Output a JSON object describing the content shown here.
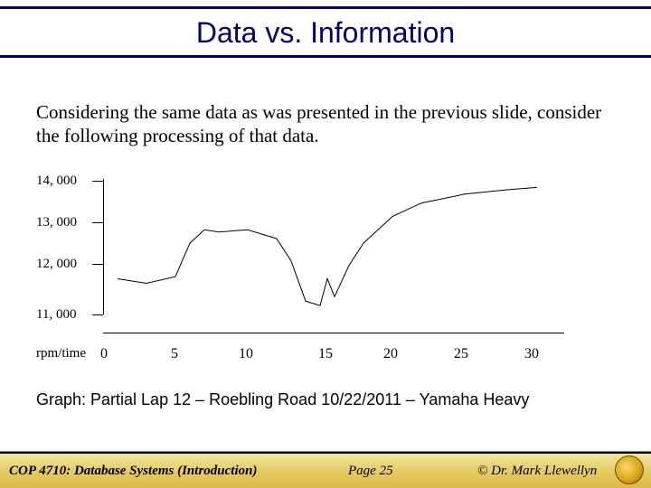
{
  "title": "Data vs. Information",
  "body": "Considering the same data as was presented in the previous slide, consider the following processing of that data.",
  "chart": {
    "type": "line",
    "y_labels": [
      "14, 000",
      "13, 000",
      "12, 000",
      "11, 000"
    ],
    "y_values": [
      14000,
      13000,
      12000,
      11000
    ],
    "x_axis_label": "rpm/time",
    "x_labels": [
      "0",
      "5",
      "10",
      "15",
      "20",
      "25",
      "30"
    ],
    "x_values": [
      0,
      5,
      10,
      15,
      20,
      25,
      30
    ],
    "xlim": [
      0,
      30
    ],
    "ylim": [
      11000,
      14000
    ],
    "series": [
      {
        "x": 1,
        "y": 11800
      },
      {
        "x": 3,
        "y": 11700
      },
      {
        "x": 5,
        "y": 11850
      },
      {
        "x": 6,
        "y": 12600
      },
      {
        "x": 7,
        "y": 12900
      },
      {
        "x": 8,
        "y": 12850
      },
      {
        "x": 10,
        "y": 12900
      },
      {
        "x": 12,
        "y": 12700
      },
      {
        "x": 13,
        "y": 12200
      },
      {
        "x": 14,
        "y": 11300
      },
      {
        "x": 15,
        "y": 11200
      },
      {
        "x": 15.5,
        "y": 11800
      },
      {
        "x": 16,
        "y": 11400
      },
      {
        "x": 17,
        "y": 12100
      },
      {
        "x": 18,
        "y": 12600
      },
      {
        "x": 20,
        "y": 13200
      },
      {
        "x": 22,
        "y": 13500
      },
      {
        "x": 25,
        "y": 13700
      },
      {
        "x": 28,
        "y": 13800
      },
      {
        "x": 30,
        "y": 13850
      }
    ],
    "line_color": "#000000",
    "line_width": 1,
    "background_color": "#ffffff",
    "tick_color": "#000000",
    "label_fontsize": 15
  },
  "caption": "Graph: Partial Lap 12 – Roebling Road 10/22/2011 – Yamaha Heavy",
  "footer": {
    "left": "COP 4710: Database Systems  (Introduction)",
    "center": "Page 25",
    "right": "©  Dr. Mark Llewellyn"
  },
  "colors": {
    "title_rule": "#000066",
    "footer_gradient_top": "#f2e6a8",
    "footer_gradient_bottom": "#d9b84a"
  }
}
